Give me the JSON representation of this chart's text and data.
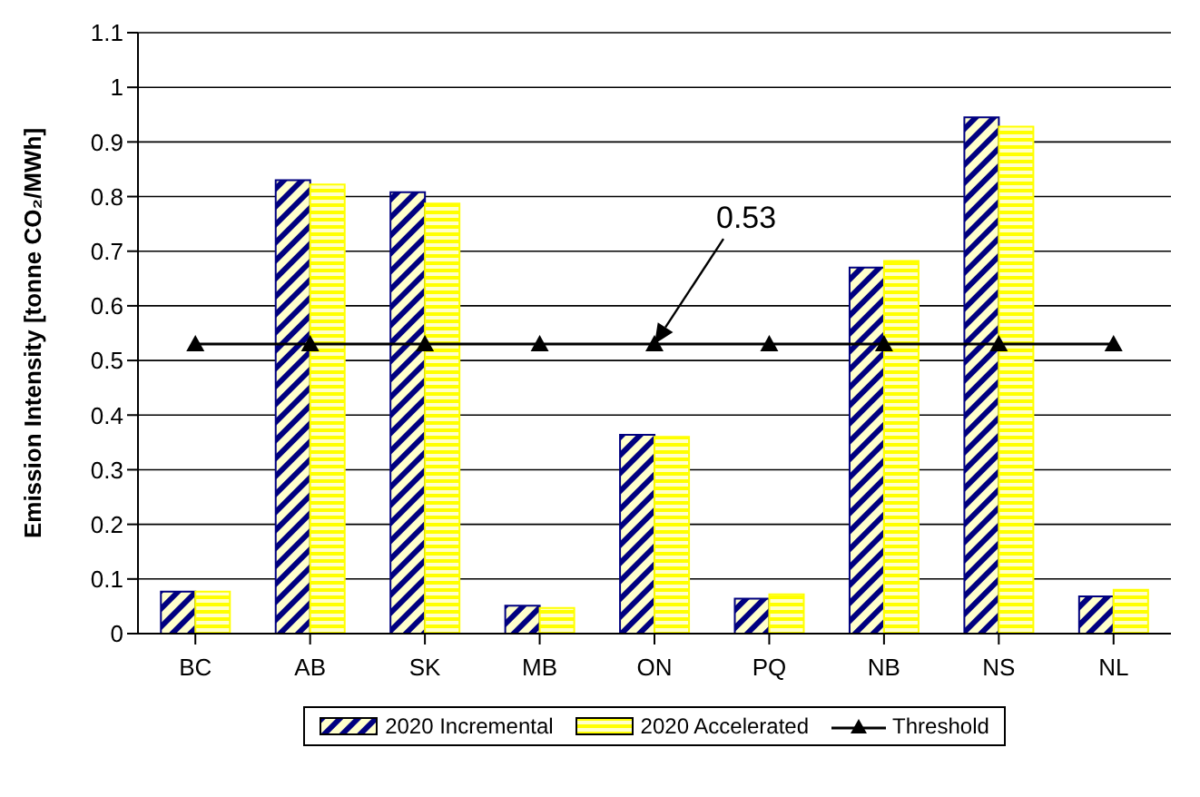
{
  "chart_data": {
    "type": "bar",
    "ylabel": "Emission Intensity [tonne CO₂/MWh]",
    "categories": [
      "BC",
      "AB",
      "SK",
      "MB",
      "ON",
      "PQ",
      "NB",
      "NS",
      "NL"
    ],
    "series": [
      {
        "name": "2020 Incremental",
        "color": "#000080",
        "values": [
          0.077,
          0.83,
          0.808,
          0.051,
          0.364,
          0.064,
          0.67,
          0.945,
          0.068
        ]
      },
      {
        "name": "2020 Accelerated",
        "color": "#ffff00",
        "values": [
          0.077,
          0.822,
          0.787,
          0.047,
          0.36,
          0.072,
          0.682,
          0.928,
          0.08
        ]
      },
      {
        "name": "Threshold",
        "type": "line",
        "color": "#000000",
        "marker": "triangle",
        "values": [
          0.53,
          0.53,
          0.53,
          0.53,
          0.53,
          0.53,
          0.53,
          0.53,
          0.53
        ]
      }
    ],
    "annotations": [
      "0.53"
    ],
    "ylim": [
      0,
      1.1
    ],
    "yticks": [
      0,
      0.1,
      0.2,
      0.3,
      0.4,
      0.5,
      0.6,
      0.7,
      0.8,
      0.9,
      1,
      1.1
    ],
    "grid": "y",
    "legend": "bottom"
  }
}
